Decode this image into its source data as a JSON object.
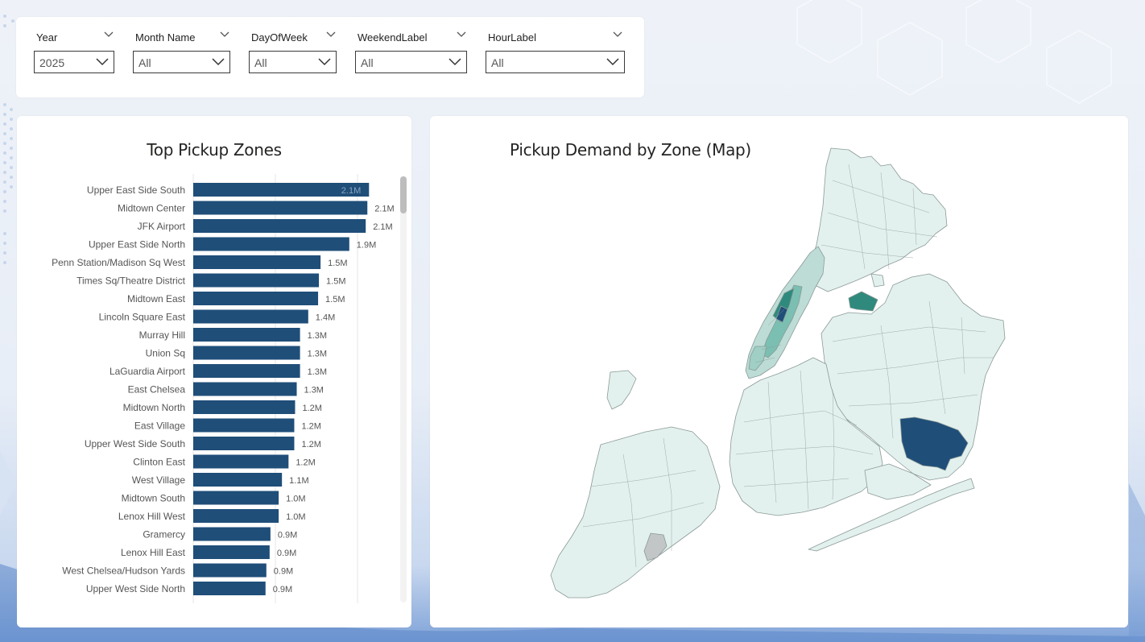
{
  "slicers": [
    {
      "title": "Year",
      "value": "2025"
    },
    {
      "title": "Month Name",
      "value": "All"
    },
    {
      "title": "DayOfWeek",
      "value": "All"
    },
    {
      "title": "WeekendLabel",
      "value": "All"
    },
    {
      "title": "HourLabel",
      "value": "All"
    }
  ],
  "bar_panel": {
    "title": "Top Pickup Zones"
  },
  "map_panel": {
    "title": "Pickup Demand by Zone (Map)"
  },
  "colors": {
    "bar": "#1f4e79",
    "map_low": "#e3f1ee",
    "map_mid": "#7bbfb2",
    "map_high": "#2f8a7d",
    "map_top": "#1f4e79"
  },
  "chart_data": {
    "type": "bar",
    "orientation": "horizontal",
    "title": "Top Pickup Zones",
    "categories": [
      "Upper East Side South",
      "Midtown Center",
      "JFK Airport",
      "Upper East Side North",
      "Penn Station/Madison Sq West",
      "Times Sq/Theatre District",
      "Midtown East",
      "Lincoln Square East",
      "Murray Hill",
      "Union Sq",
      "LaGuardia Airport",
      "East Chelsea",
      "Midtown North",
      "East Village",
      "Upper West Side South",
      "Clinton East",
      "West Village",
      "Midtown South",
      "Lenox Hill West",
      "Gramercy",
      "Lenox Hill East",
      "West Chelsea/Hudson Yards",
      "Upper West Side North"
    ],
    "values": [
      2.14,
      2.12,
      2.1,
      1.9,
      1.55,
      1.53,
      1.52,
      1.4,
      1.3,
      1.3,
      1.3,
      1.26,
      1.24,
      1.23,
      1.23,
      1.16,
      1.08,
      1.04,
      1.04,
      0.94,
      0.93,
      0.89,
      0.88
    ],
    "labels": [
      "2.1M",
      "2.1M",
      "2.1M",
      "1.9M",
      "1.5M",
      "1.5M",
      "1.5M",
      "1.4M",
      "1.3M",
      "1.3M",
      "1.3M",
      "1.3M",
      "1.2M",
      "1.2M",
      "1.2M",
      "1.2M",
      "1.1M",
      "1.0M",
      "1.0M",
      "0.9M",
      "0.9M",
      "0.9M",
      "0.9M"
    ],
    "unit": "M",
    "xlim": [
      0,
      2.6
    ],
    "gridlines": [
      1,
      2
    ],
    "grid": true
  }
}
